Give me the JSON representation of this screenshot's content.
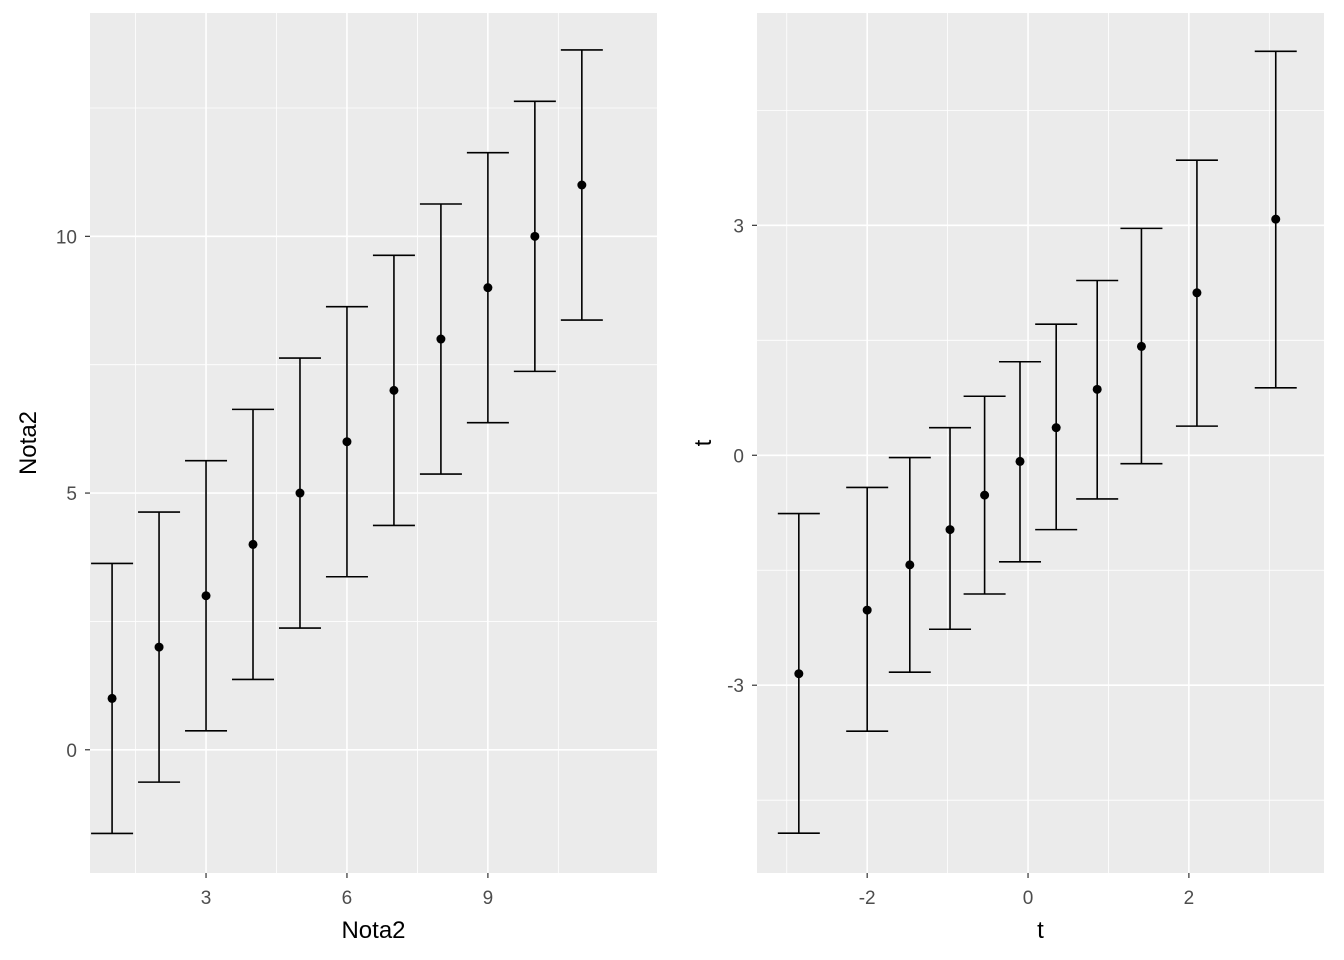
{
  "chart_data": [
    {
      "type": "errorbar",
      "xlabel": "Nota2",
      "ylabel": "Nota2",
      "xlim": [
        0.53,
        12.6
      ],
      "ylim": [
        -2.4,
        14.35
      ],
      "x_major_ticks": [
        3,
        6,
        9
      ],
      "x_tick_labels": [
        "3",
        "6",
        "9"
      ],
      "y_major_ticks": [
        0,
        5,
        10
      ],
      "y_tick_labels": [
        "0",
        "5",
        "10"
      ],
      "grid": true,
      "colors": {
        "panel": "#EBEBEB",
        "grid": "#FFFFFF",
        "marks": "#000000"
      },
      "points": [
        {
          "x": 1,
          "y": 1,
          "ymin": -1.63,
          "ymax": 3.63
        },
        {
          "x": 2,
          "y": 2,
          "ymin": -0.63,
          "ymax": 4.63
        },
        {
          "x": 3,
          "y": 3,
          "ymin": 0.37,
          "ymax": 5.63
        },
        {
          "x": 4,
          "y": 4,
          "ymin": 1.37,
          "ymax": 6.63
        },
        {
          "x": 5,
          "y": 5,
          "ymin": 2.37,
          "ymax": 7.63
        },
        {
          "x": 6,
          "y": 6,
          "ymin": 3.37,
          "ymax": 8.63
        },
        {
          "x": 7,
          "y": 7,
          "ymin": 4.37,
          "ymax": 9.63
        },
        {
          "x": 8,
          "y": 8,
          "ymin": 5.37,
          "ymax": 10.63
        },
        {
          "x": 9,
          "y": 9,
          "ymin": 6.37,
          "ymax": 11.63
        },
        {
          "x": 10,
          "y": 10,
          "ymin": 7.37,
          "ymax": 12.63
        },
        {
          "x": 11,
          "y": 11,
          "ymin": 8.37,
          "ymax": 13.63
        }
      ]
    },
    {
      "type": "errorbar",
      "xlabel": "t",
      "ylabel": "t",
      "xlim": [
        -3.37,
        3.68
      ],
      "ylim": [
        -5.45,
        5.77
      ],
      "x_major_ticks": [
        -2,
        0,
        2
      ],
      "x_tick_labels": [
        "-2",
        "0",
        "2"
      ],
      "y_major_ticks": [
        -3,
        0,
        3
      ],
      "y_tick_labels": [
        "-3",
        "0",
        "3"
      ],
      "grid": true,
      "colors": {
        "panel": "#EBEBEB",
        "grid": "#FFFFFF",
        "marks": "#000000"
      },
      "points": [
        {
          "x": -2.85,
          "y": -2.85,
          "ymin": -4.93,
          "ymax": -0.76
        },
        {
          "x": -2.0,
          "y": -2.02,
          "ymin": -3.6,
          "ymax": -0.42
        },
        {
          "x": -1.47,
          "y": -1.43,
          "ymin": -2.83,
          "ymax": -0.03
        },
        {
          "x": -0.97,
          "y": -0.97,
          "ymin": -2.27,
          "ymax": 0.36
        },
        {
          "x": -0.54,
          "y": -0.52,
          "ymin": -1.81,
          "ymax": 0.77
        },
        {
          "x": -0.1,
          "y": -0.08,
          "ymin": -1.39,
          "ymax": 1.22
        },
        {
          "x": 0.35,
          "y": 0.36,
          "ymin": -0.97,
          "ymax": 1.71
        },
        {
          "x": 0.86,
          "y": 0.86,
          "ymin": -0.57,
          "ymax": 2.28
        },
        {
          "x": 1.41,
          "y": 1.42,
          "ymin": -0.11,
          "ymax": 2.96
        },
        {
          "x": 2.1,
          "y": 2.12,
          "ymin": 0.38,
          "ymax": 3.85
        },
        {
          "x": 3.08,
          "y": 3.08,
          "ymin": 0.88,
          "ymax": 5.27
        }
      ]
    }
  ]
}
